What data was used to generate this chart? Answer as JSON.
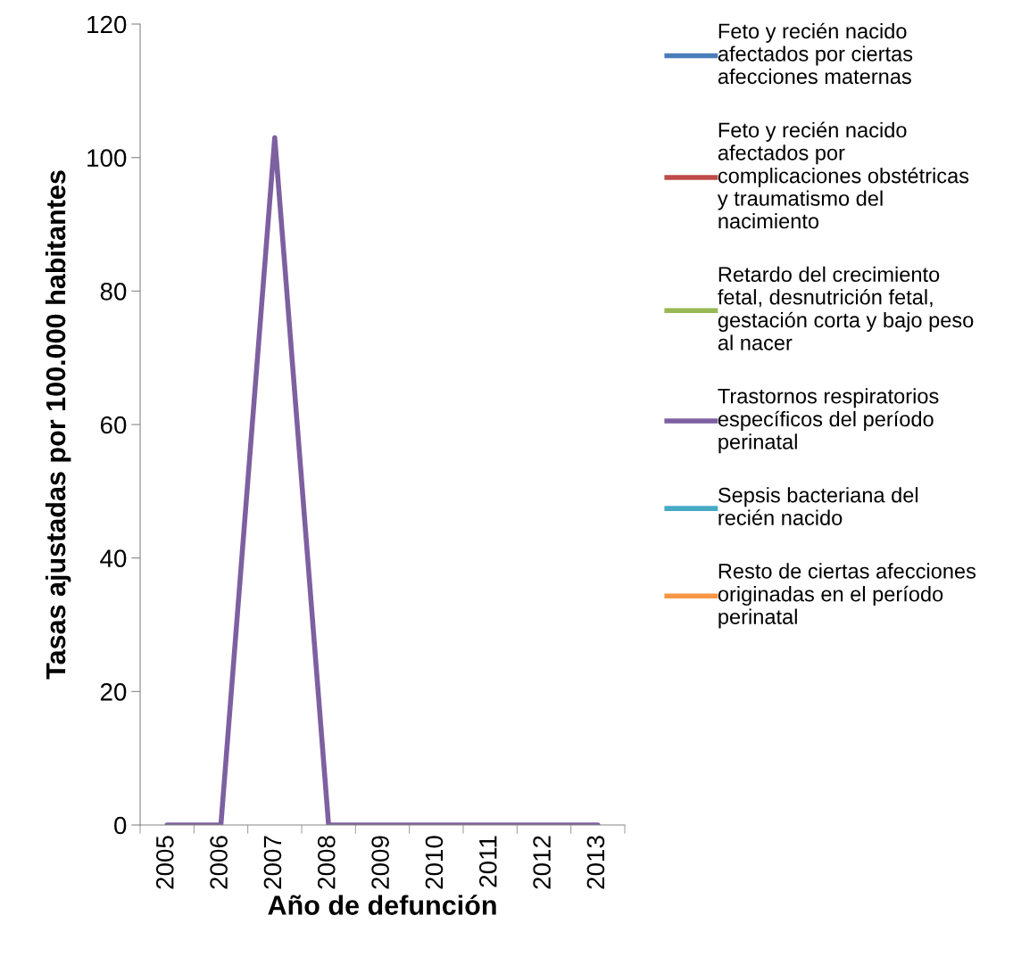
{
  "chart_data": {
    "type": "line",
    "xlabel": "Año de defunción",
    "ylabel": "Tasas ajustadas por 100.000 habitantes",
    "categories": [
      "2005",
      "2006",
      "2007",
      "2008",
      "2009",
      "2010",
      "2011",
      "2012",
      "2013"
    ],
    "ylim": [
      0,
      120
    ],
    "yticks": [
      0,
      20,
      40,
      60,
      80,
      100,
      120
    ],
    "grid": false,
    "legend": "right",
    "marker": "none",
    "line_style": "solid",
    "series": [
      {
        "name": "Feto y recién nacido\nafectados por ciertas\nafecciones maternas",
        "color": "#4a7ebb",
        "values": [
          null,
          null,
          null,
          null,
          null,
          null,
          null,
          null,
          null
        ]
      },
      {
        "name": "Feto y recién nacido\nafectados por\ncomplicaciones obstétricas\ny traumatismo del\nnacimiento",
        "color": "#be4b48",
        "values": [
          null,
          null,
          null,
          null,
          null,
          null,
          null,
          null,
          null
        ]
      },
      {
        "name": "Retardo del crecimiento\nfetal, desnutrición fetal,\ngestación corta y bajo peso\nal nacer",
        "color": "#98b954",
        "values": [
          null,
          null,
          null,
          null,
          null,
          null,
          null,
          null,
          null
        ]
      },
      {
        "name": "Trastornos respiratorios\nespecíficos del período\nperinatal",
        "color": "#7d60a0",
        "values": [
          0,
          0,
          103,
          0,
          0,
          0,
          0,
          0,
          0
        ]
      },
      {
        "name": "Sepsis bacteriana del\nrecién nacido",
        "color": "#46aac5",
        "values": [
          null,
          null,
          null,
          null,
          null,
          null,
          null,
          null,
          null
        ]
      },
      {
        "name": "Resto de ciertas afecciones\noriginadas en el período\nperinatal",
        "color": "#f79646",
        "values": [
          null,
          null,
          null,
          null,
          null,
          null,
          null,
          null,
          null
        ]
      }
    ]
  }
}
